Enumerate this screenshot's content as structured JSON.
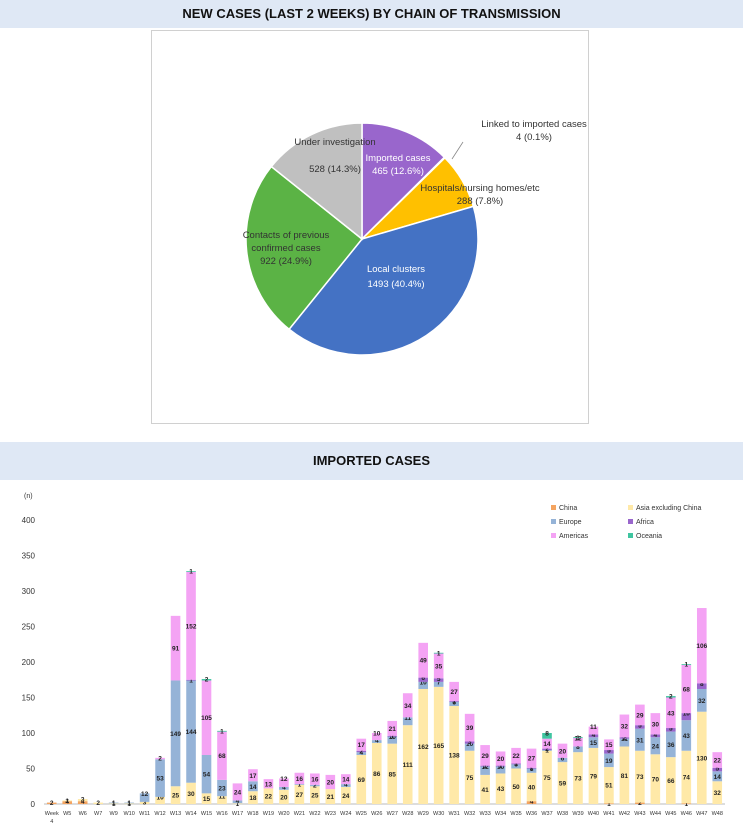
{
  "pie_title": "NEW CASES (LAST 2 WEEKS) BY CHAIN OF TRANSMISSION",
  "bar_title": "IMPORTED CASES",
  "chart_data": [
    {
      "type": "pie",
      "slices": [
        {
          "label": "Imported cases",
          "value": 465,
          "display": "465 (12.6%)",
          "color": "#9966cc"
        },
        {
          "label": "Linked to imported cases",
          "value": 4,
          "display": "4 (0.1%)",
          "color": "#ff8c1a"
        },
        {
          "label": "Hospitals/nursing homes/etc",
          "value": 288,
          "display": "288 (7.8%)",
          "color": "#ffc000"
        },
        {
          "label": "Local clusters",
          "value": 1493,
          "display": "1493 (40.4%)",
          "color": "#4472c4"
        },
        {
          "label": "Contacts of previous confirmed cases",
          "value": 922,
          "display": "922 (24.9%)",
          "color": "#5bb345"
        },
        {
          "label": "Under investigation",
          "value": 528,
          "display": "528 (14.3%)",
          "color": "#c0c0c0"
        }
      ]
    },
    {
      "type": "bar",
      "stacked": true,
      "ylabel": "(n)",
      "ylim": [
        0,
        400
      ],
      "yticks": [
        0,
        50,
        100,
        150,
        200,
        250,
        300,
        350,
        400
      ],
      "legend_position": "top-right",
      "categories": [
        "Week 4",
        "W5",
        "W6",
        "W7",
        "W9",
        "W10",
        "W11",
        "W12",
        "W13",
        "W14",
        "W15",
        "W16",
        "W17",
        "W18",
        "W19",
        "W20",
        "W21",
        "W22",
        "W23",
        "W24",
        "W25",
        "W26",
        "W27",
        "W28",
        "W29",
        "W30",
        "W31",
        "W32",
        "W33",
        "W34",
        "W35",
        "W36",
        "W37",
        "W38",
        "W39",
        "W40",
        "W41",
        "W42",
        "W43",
        "W44",
        "W45",
        "W46",
        "W47",
        "W48"
      ],
      "series": [
        {
          "name": "China",
          "color": "#f4a460",
          "values": [
            2,
            4,
            4,
            0,
            0,
            0,
            0,
            0,
            0,
            0,
            0,
            0,
            0,
            0,
            0,
            0,
            0,
            0,
            0,
            0,
            0,
            0,
            0,
            0,
            0,
            0,
            0,
            0,
            0,
            0,
            0,
            4,
            0,
            0,
            0,
            0,
            1,
            0,
            2,
            0,
            0,
            1,
            0,
            0
          ]
        },
        {
          "name": "Asia excluding China",
          "color": "#ffe9a8",
          "values": [
            0,
            1,
            3,
            2,
            1,
            1,
            3,
            10,
            25,
            30,
            15,
            11,
            1,
            18,
            22,
            20,
            27,
            25,
            21,
            24,
            69,
            86,
            85,
            111,
            162,
            165,
            138,
            75,
            41,
            43,
            50,
            40,
            75,
            59,
            73,
            79,
            51,
            81,
            73,
            70,
            66,
            74,
            130,
            32
          ]
        },
        {
          "name": "Europe",
          "color": "#95b3d7",
          "values": [
            0,
            0,
            0,
            0,
            1,
            1,
            12,
            53,
            149,
            144,
            54,
            23,
            4,
            14,
            0,
            4,
            1,
            2,
            0,
            4,
            4,
            4,
            10,
            11,
            10,
            7,
            6,
            10,
            12,
            10,
            6,
            6,
            1,
            6,
            8,
            15,
            19,
            11,
            31,
            24,
            36,
            43,
            32,
            14
          ]
        },
        {
          "name": "Africa",
          "color": "#9966cc",
          "values": [
            0,
            0,
            0,
            0,
            0,
            0,
            0,
            0,
            0,
            1,
            0,
            0,
            0,
            0,
            0,
            0,
            0,
            0,
            0,
            0,
            2,
            0,
            1,
            0,
            6,
            5,
            1,
            3,
            1,
            1,
            1,
            1,
            2,
            0,
            0,
            4,
            5,
            2,
            5,
            4,
            5,
            10,
            8,
            5
          ]
        },
        {
          "name": "Americas",
          "color": "#f4a3f4",
          "values": [
            0,
            0,
            0,
            0,
            0,
            0,
            0,
            2,
            91,
            152,
            105,
            68,
            24,
            17,
            13,
            12,
            16,
            16,
            20,
            14,
            17,
            10,
            21,
            34,
            49,
            35,
            27,
            39,
            29,
            20,
            22,
            27,
            14,
            20,
            12,
            11,
            15,
            32,
            29,
            30,
            43,
            68,
            106,
            22
          ]
        },
        {
          "name": "Oceania",
          "color": "#3fc5a0",
          "values": [
            0,
            0,
            0,
            0,
            0,
            0,
            0,
            0,
            0,
            1,
            2,
            1,
            0,
            0,
            0,
            0,
            0,
            0,
            0,
            0,
            0,
            0,
            0,
            0,
            0,
            1,
            0,
            0,
            0,
            0,
            0,
            0,
            8,
            0,
            1,
            0,
            0,
            0,
            0,
            0,
            2,
            1,
            0,
            0
          ]
        }
      ]
    }
  ]
}
